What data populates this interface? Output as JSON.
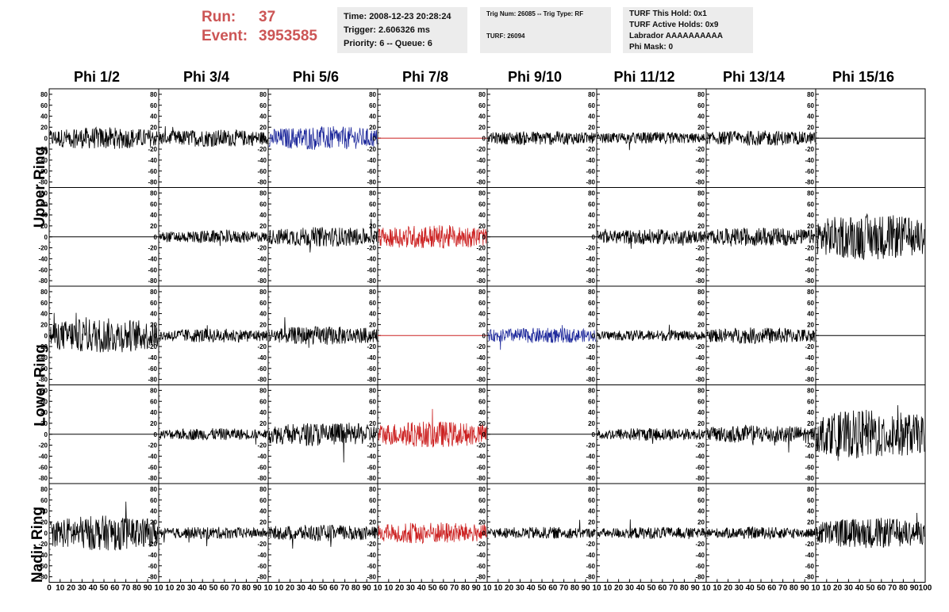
{
  "run": {
    "run_label": "Run:",
    "run_value": "37",
    "event_label": "Event:",
    "event_value": "3953585"
  },
  "info1": {
    "time": "Time: 2008-12-23 20:28:24",
    "trigger": "Trigger: 2.606326 ms",
    "priority": "Priority: 6 -- Queue: 6"
  },
  "info2": {
    "trig": "Trig Num: 26085 -- Trig Type: RF",
    "turf": "TURF: 26094"
  },
  "info3": {
    "hold": "TURF This Hold: 0x1",
    "active": "TURF Active Holds: 0x9",
    "labrador": "Labrador AAAAAAAAAA",
    "phimask": "Phi Mask: 0"
  },
  "columns": [
    "Phi 1/2",
    "Phi 3/4",
    "Phi 5/6",
    "Phi 7/8",
    "Phi 9/10",
    "Phi 11/12",
    "Phi 13/14",
    "Phi 15/16"
  ],
  "ring_labels": {
    "upper": "Upper Ring",
    "lower": "Lower Ring",
    "nadir": "Nadir Ring"
  },
  "colors": {
    "run_text": "#cc5555",
    "trace_default": "#000000",
    "trace_blue": "#1f2a9c",
    "trace_red": "#cc2222",
    "info_bg": "#ececec"
  },
  "chart_data": {
    "type": "line",
    "description_rows": 5,
    "x_range": [
      0,
      100
    ],
    "y_range": [
      -90,
      90
    ],
    "y_ticks": [
      80,
      60,
      40,
      20,
      0,
      -20,
      -40,
      -60,
      -80
    ],
    "x_ticks": [
      0,
      10,
      20,
      30,
      40,
      50,
      60,
      70,
      80,
      90,
      100
    ],
    "x_tick_labels_first": [
      "0",
      "10",
      "20",
      "30",
      "40",
      "50",
      "60",
      "70",
      "80",
      "90",
      "10"
    ],
    "x_tick_labels_middle": [
      "10",
      "20",
      "30",
      "40",
      "50",
      "60",
      "70",
      "80",
      "90",
      "10"
    ],
    "x_tick_labels_last": [
      "10",
      "20",
      "30",
      "40",
      "50",
      "60",
      "70",
      "80",
      "90",
      "100"
    ],
    "panels": [
      [
        {
          "amp": 20,
          "color": "black"
        },
        {
          "amp": 16,
          "color": "black"
        },
        {
          "amp": 22,
          "color": "blue"
        },
        {
          "amp": 0,
          "color": "red",
          "flat": true
        },
        {
          "amp": 13,
          "color": "black"
        },
        {
          "amp": 11,
          "color": "black"
        },
        {
          "amp": 14,
          "color": "black"
        },
        {
          "amp": 0,
          "color": "black",
          "flat": true
        }
      ],
      [
        {
          "amp": 0,
          "color": "black",
          "flat": true
        },
        {
          "amp": 12,
          "color": "black"
        },
        {
          "amp": 18,
          "color": "black"
        },
        {
          "amp": 22,
          "color": "red"
        },
        {
          "amp": 0,
          "color": "black",
          "flat": true
        },
        {
          "amp": 14,
          "color": "black"
        },
        {
          "amp": 17,
          "color": "black"
        },
        {
          "amp": 42,
          "color": "black"
        }
      ],
      [
        {
          "amp": 32,
          "color": "black"
        },
        {
          "amp": 13,
          "color": "black"
        },
        {
          "amp": 17,
          "color": "black"
        },
        {
          "amp": 0,
          "color": "red",
          "flat": true
        },
        {
          "amp": 14,
          "color": "blue"
        },
        {
          "amp": 10,
          "color": "black"
        },
        {
          "amp": 15,
          "color": "black"
        },
        {
          "amp": 0,
          "color": "black",
          "flat": true
        }
      ],
      [
        {
          "amp": 0,
          "color": "black",
          "flat": true
        },
        {
          "amp": 11,
          "color": "black"
        },
        {
          "amp": 22,
          "color": "black"
        },
        {
          "amp": 24,
          "color": "red"
        },
        {
          "amp": 0,
          "color": "black",
          "flat": true
        },
        {
          "amp": 12,
          "color": "black"
        },
        {
          "amp": 17,
          "color": "black"
        },
        {
          "amp": 45,
          "color": "black"
        }
      ],
      [
        {
          "amp": 32,
          "color": "black"
        },
        {
          "amp": 11,
          "color": "black"
        },
        {
          "amp": 15,
          "color": "black"
        },
        {
          "amp": 20,
          "color": "red"
        },
        {
          "amp": 11,
          "color": "black"
        },
        {
          "amp": 11,
          "color": "black"
        },
        {
          "amp": 11,
          "color": "black"
        },
        {
          "amp": 28,
          "color": "black"
        }
      ]
    ]
  }
}
